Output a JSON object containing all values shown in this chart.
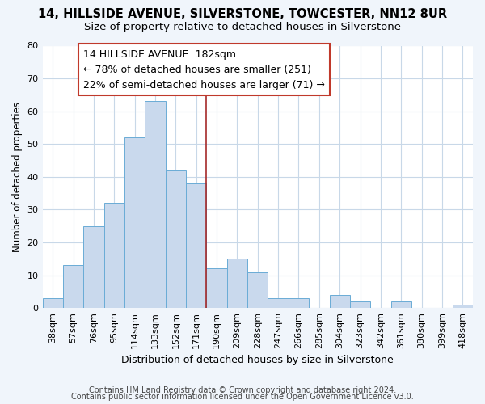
{
  "title": "14, HILLSIDE AVENUE, SILVERSTONE, TOWCESTER, NN12 8UR",
  "subtitle": "Size of property relative to detached houses in Silverstone",
  "xlabel": "Distribution of detached houses by size in Silverstone",
  "ylabel": "Number of detached properties",
  "bar_labels": [
    "38sqm",
    "57sqm",
    "76sqm",
    "95sqm",
    "114sqm",
    "133sqm",
    "152sqm",
    "171sqm",
    "190sqm",
    "209sqm",
    "228sqm",
    "247sqm",
    "266sqm",
    "285sqm",
    "304sqm",
    "323sqm",
    "342sqm",
    "361sqm",
    "380sqm",
    "399sqm",
    "418sqm"
  ],
  "bar_values": [
    3,
    13,
    25,
    32,
    52,
    63,
    42,
    38,
    12,
    15,
    11,
    3,
    3,
    0,
    4,
    2,
    0,
    2,
    0,
    0,
    1
  ],
  "bar_color": "#c9d9ed",
  "bar_edge_color": "#6aacd6",
  "vline_color": "#a52a2a",
  "annotation_line1": "14 HILLSIDE AVENUE: 182sqm",
  "annotation_line2": "← 78% of detached houses are smaller (251)",
  "annotation_line3": "22% of semi-detached houses are larger (71) →",
  "annotation_box_color": "#ffffff",
  "annotation_box_edge_color": "#c0392b",
  "ylim": [
    0,
    80
  ],
  "yticks": [
    0,
    10,
    20,
    30,
    40,
    50,
    60,
    70,
    80
  ],
  "footer1": "Contains HM Land Registry data © Crown copyright and database right 2024.",
  "footer2": "Contains public sector information licensed under the Open Government Licence v3.0.",
  "figure_background_color": "#f0f5fb",
  "plot_background_color": "#ffffff",
  "grid_color": "#c8d8e8",
  "title_fontsize": 10.5,
  "subtitle_fontsize": 9.5,
  "annotation_fontsize": 9,
  "footer_fontsize": 7,
  "axis_label_fontsize": 9,
  "tick_fontsize": 8,
  "ylabel_fontsize": 8.5
}
